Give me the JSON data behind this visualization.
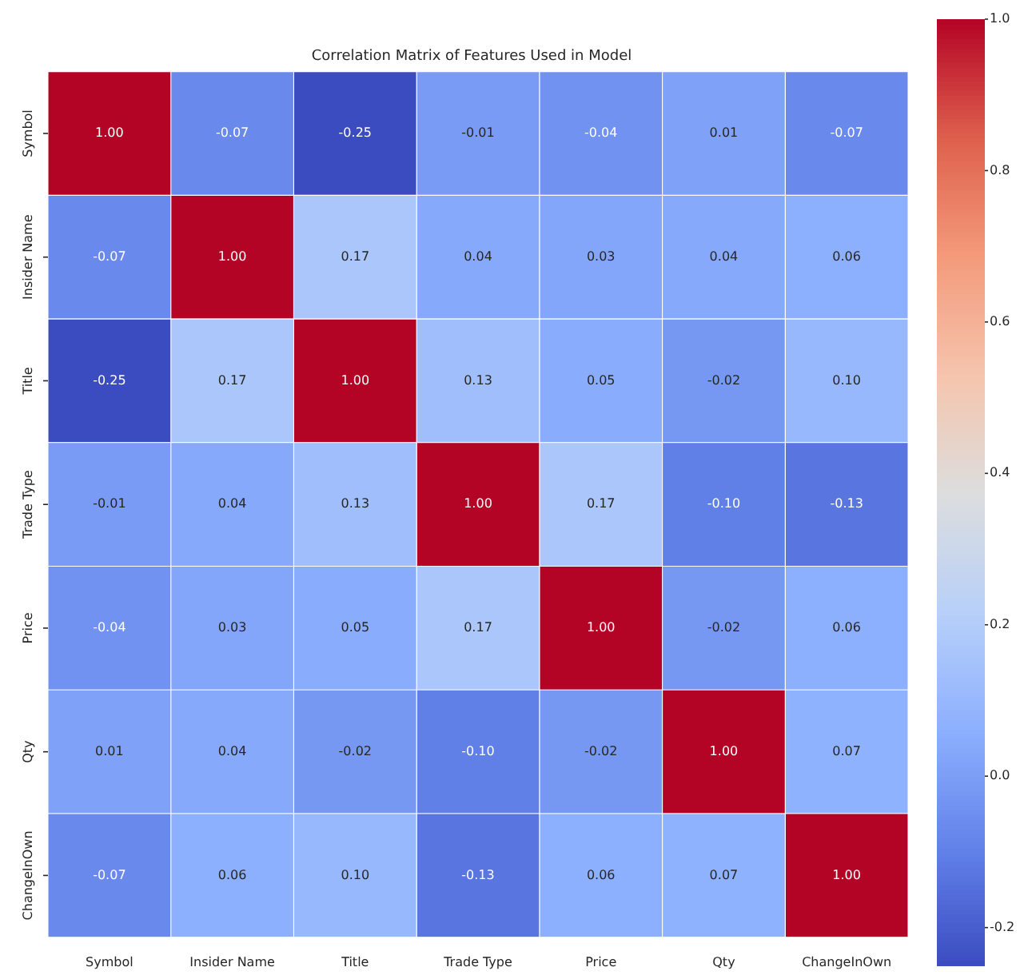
{
  "chart_data": {
    "type": "heatmap",
    "title": "Correlation Matrix of Features Used in Model",
    "categories": [
      "Symbol",
      "Insider Name",
      "Title",
      "Trade Type",
      "Price",
      "Qty",
      "ChangeInOwn"
    ],
    "y_categories": [
      "Symbol",
      "Insider Name",
      "Title",
      "Trade Type",
      "Price",
      "Qty",
      "ChangeInOwn"
    ],
    "cells": [
      [
        1.0,
        -0.07,
        -0.25,
        -0.01,
        -0.04,
        0.01,
        -0.07
      ],
      [
        -0.07,
        1.0,
        0.17,
        0.04,
        0.03,
        0.04,
        0.06
      ],
      [
        -0.25,
        0.17,
        1.0,
        0.13,
        0.05,
        -0.02,
        0.1
      ],
      [
        -0.01,
        0.04,
        0.13,
        1.0,
        0.17,
        -0.1,
        -0.13
      ],
      [
        -0.04,
        0.03,
        0.05,
        0.17,
        1.0,
        -0.02,
        0.06
      ],
      [
        0.01,
        0.04,
        -0.02,
        -0.1,
        -0.02,
        1.0,
        0.07
      ],
      [
        -0.07,
        0.06,
        0.1,
        -0.13,
        0.06,
        0.07,
        1.0
      ]
    ],
    "cell_labels": [
      [
        "1.00",
        "-0.07",
        "-0.25",
        "-0.01",
        "-0.04",
        "0.01",
        "-0.07"
      ],
      [
        "-0.07",
        "1.00",
        "0.17",
        "0.04",
        "0.03",
        "0.04",
        "0.06"
      ],
      [
        "-0.25",
        "0.17",
        "1.00",
        "0.13",
        "0.05",
        "-0.02",
        "0.10"
      ],
      [
        "-0.01",
        "0.04",
        "0.13",
        "1.00",
        "0.17",
        "-0.10",
        "-0.13"
      ],
      [
        "-0.04",
        "0.03",
        "0.05",
        "0.17",
        "1.00",
        "-0.02",
        "0.06"
      ],
      [
        "0.01",
        "0.04",
        "-0.02",
        "-0.10",
        "-0.02",
        "1.00",
        "0.07"
      ],
      [
        "-0.07",
        "0.06",
        "0.10",
        "-0.13",
        "0.06",
        "0.07",
        "1.00"
      ]
    ],
    "clim": [
      -0.25,
      1.0
    ],
    "cticks": [
      {
        "value": -0.2,
        "label": "-0.2"
      },
      {
        "value": 0.0,
        "label": "0.0"
      },
      {
        "value": 0.2,
        "label": "0.2"
      },
      {
        "value": 0.4,
        "label": "0.4"
      },
      {
        "value": 0.6,
        "label": "0.6"
      },
      {
        "value": 0.8,
        "label": "0.8"
      },
      {
        "value": 1.0,
        "label": "1.0"
      }
    ]
  }
}
